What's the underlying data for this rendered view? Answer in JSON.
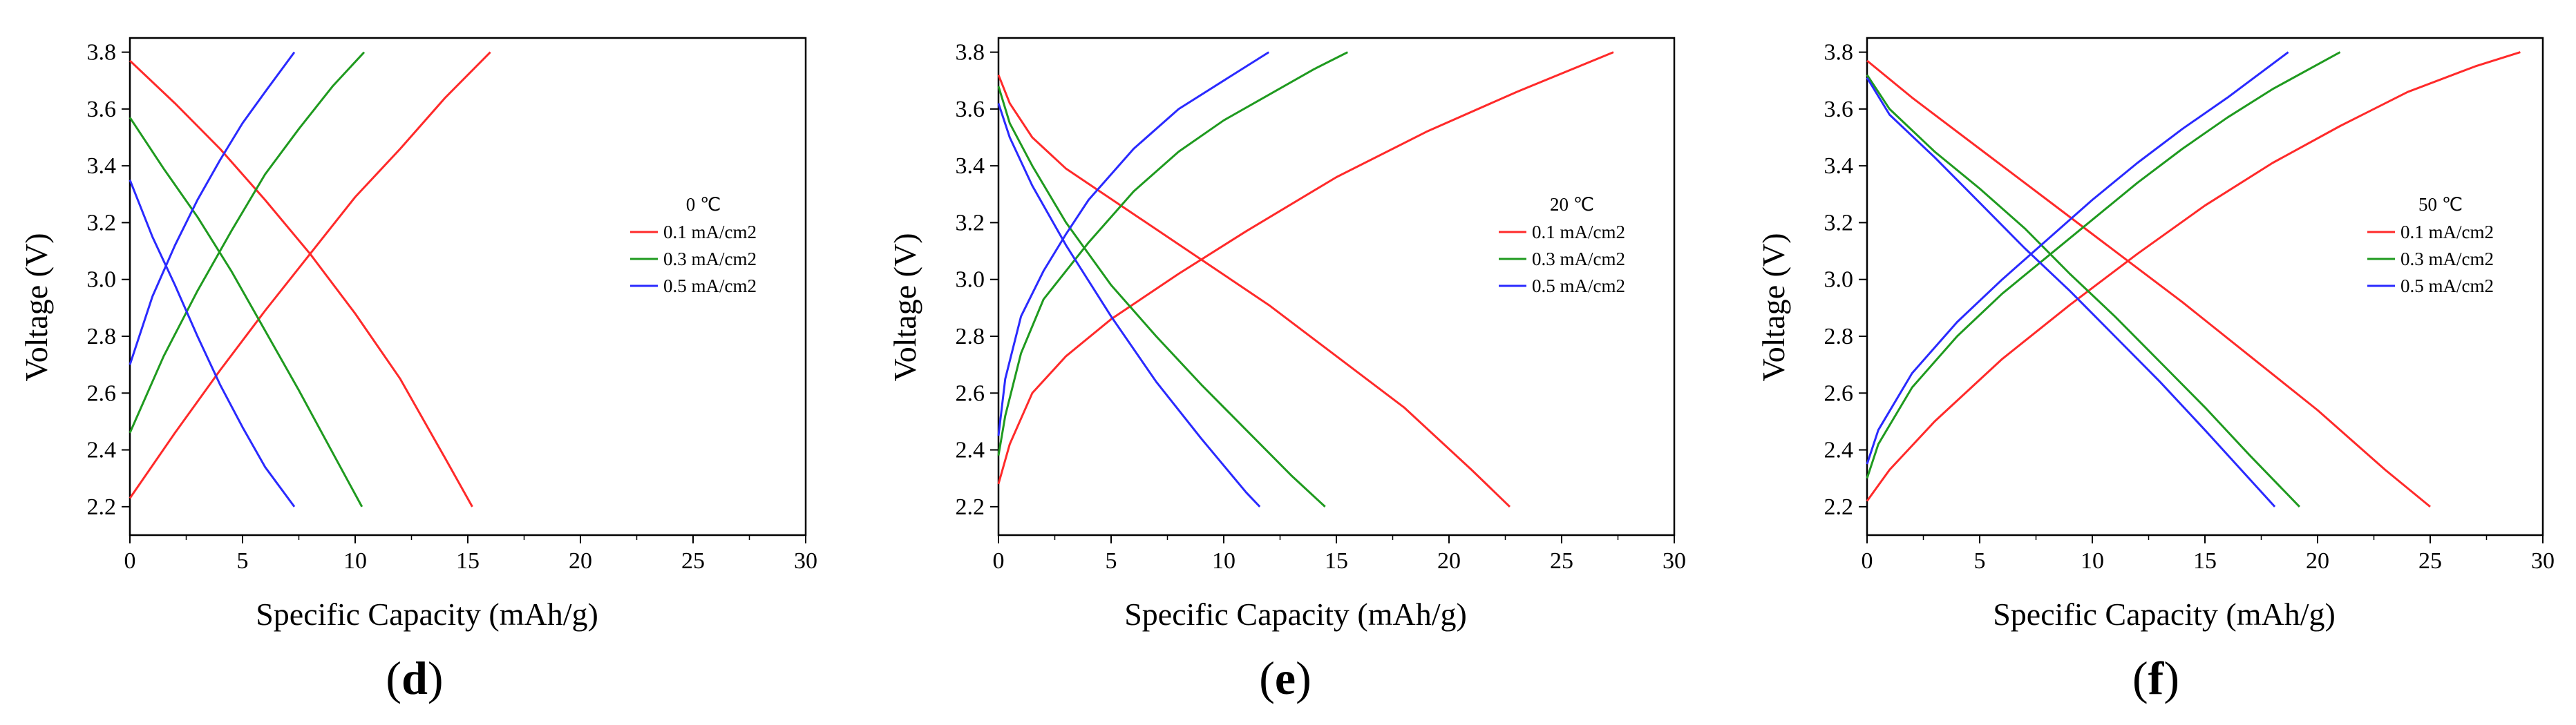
{
  "chart_data": [
    {
      "type": "line",
      "panel_label": {
        "open": "(",
        "letter": "d",
        "close": ")"
      },
      "legend_title": "0 ℃",
      "xlabel": "Specific Capacity (mAh/g)",
      "ylabel": "Voltage (V)",
      "xlim": [
        0,
        30
      ],
      "ylim": [
        2.1,
        3.85
      ],
      "xticks": [
        "0",
        "5",
        "10",
        "15",
        "20",
        "25",
        "30"
      ],
      "yticks": [
        "2.2",
        "2.4",
        "2.6",
        "2.8",
        "3.0",
        "3.2",
        "3.4",
        "3.6",
        "3.8"
      ],
      "legend_position": "center-right",
      "series": [
        {
          "name": "0.1 mA/cm2",
          "color": "#ff2a2a",
          "charge": {
            "x": [
              0,
              2,
              4,
              6,
              8,
              10,
              12,
              14,
              16
            ],
            "y": [
              2.23,
              2.46,
              2.68,
              2.89,
              3.09,
              3.29,
              3.46,
              3.64,
              3.8
            ]
          },
          "discharge": {
            "x": [
              0,
              2,
              4,
              6,
              8,
              10,
              12,
              14,
              15.2
            ],
            "y": [
              3.77,
              3.62,
              3.46,
              3.28,
              3.09,
              2.88,
              2.65,
              2.37,
              2.2
            ]
          }
        },
        {
          "name": "0.3 mA/cm2",
          "color": "#1f9a1f",
          "charge": {
            "x": [
              0,
              1.5,
              3,
              4.5,
              6,
              7.5,
              9,
              10.4
            ],
            "y": [
              2.46,
              2.73,
              2.96,
              3.17,
              3.37,
              3.53,
              3.68,
              3.8
            ]
          },
          "discharge": {
            "x": [
              0,
              1.5,
              3,
              4.5,
              6,
              7.5,
              9,
              10.3
            ],
            "y": [
              3.57,
              3.39,
              3.22,
              3.03,
              2.82,
              2.61,
              2.39,
              2.2
            ]
          }
        },
        {
          "name": "0.5 mA/cm2",
          "color": "#2a2aff",
          "charge": {
            "x": [
              0,
              1,
              2,
              3,
              4,
              5,
              6,
              7.3
            ],
            "y": [
              2.7,
              2.94,
              3.12,
              3.28,
              3.42,
              3.55,
              3.66,
              3.8
            ]
          },
          "discharge": {
            "x": [
              0,
              1,
              2,
              3,
              4,
              5,
              6,
              7.3
            ],
            "y": [
              3.35,
              3.15,
              2.98,
              2.8,
              2.63,
              2.48,
              2.34,
              2.2
            ]
          }
        }
      ]
    },
    {
      "type": "line",
      "panel_label": {
        "open": "(",
        "letter": "e",
        "close": ")"
      },
      "legend_title": "20 ℃",
      "xlabel": "Specific Capacity (mAh/g)",
      "ylabel": "Voltage (V)",
      "xlim": [
        0,
        30
      ],
      "ylim": [
        2.1,
        3.85
      ],
      "xticks": [
        "0",
        "5",
        "10",
        "15",
        "20",
        "25",
        "30"
      ],
      "yticks": [
        "2.2",
        "2.4",
        "2.6",
        "2.8",
        "3.0",
        "3.2",
        "3.4",
        "3.6",
        "3.8"
      ],
      "legend_position": "center-right",
      "series": [
        {
          "name": "0.1 mA/cm2",
          "color": "#ff2a2a",
          "charge": {
            "x": [
              0,
              0.5,
              1.5,
              3,
              5,
              8,
              11,
              15,
              19,
              23,
              27.3
            ],
            "y": [
              2.28,
              2.42,
              2.6,
              2.73,
              2.86,
              3.02,
              3.17,
              3.36,
              3.52,
              3.66,
              3.8
            ]
          },
          "discharge": {
            "x": [
              0,
              0.5,
              1.5,
              3,
              6,
              9,
              12,
              15,
              18,
              21,
              22.7
            ],
            "y": [
              3.72,
              3.62,
              3.5,
              3.39,
              3.23,
              3.07,
              2.91,
              2.73,
              2.55,
              2.33,
              2.2
            ]
          }
        },
        {
          "name": "0.3 mA/cm2",
          "color": "#1f9a1f",
          "charge": {
            "x": [
              0,
              0.3,
              1,
              2,
              4,
              6,
              8,
              10,
              12,
              14,
              15.5
            ],
            "y": [
              2.38,
              2.52,
              2.74,
              2.93,
              3.13,
              3.31,
              3.45,
              3.56,
              3.65,
              3.74,
              3.8
            ]
          },
          "discharge": {
            "x": [
              0,
              0.5,
              1.5,
              3,
              5,
              7,
              9,
              11,
              13,
              14.5
            ],
            "y": [
              3.68,
              3.55,
              3.4,
              3.2,
              2.98,
              2.8,
              2.63,
              2.47,
              2.31,
              2.2
            ]
          }
        },
        {
          "name": "0.5 mA/cm2",
          "color": "#2a2aff",
          "charge": {
            "x": [
              0,
              0.3,
              1,
              2,
              3,
              4,
              6,
              8,
              10,
              12
            ],
            "y": [
              2.45,
              2.65,
              2.87,
              3.03,
              3.16,
              3.28,
              3.46,
              3.6,
              3.7,
              3.8
            ]
          },
          "discharge": {
            "x": [
              0,
              0.5,
              1.5,
              3,
              5,
              7,
              9,
              11,
              11.6
            ],
            "y": [
              3.62,
              3.5,
              3.33,
              3.12,
              2.87,
              2.64,
              2.44,
              2.25,
              2.2
            ]
          }
        }
      ]
    },
    {
      "type": "line",
      "panel_label": {
        "open": "(",
        "letter": "f",
        "close": ")"
      },
      "legend_title": "50 ℃",
      "xlabel": "Specific Capacity (mAh/g)",
      "ylabel": "Voltage (V)",
      "xlim": [
        0,
        30
      ],
      "ylim": [
        2.1,
        3.85
      ],
      "xticks": [
        "0",
        "5",
        "10",
        "15",
        "20",
        "25",
        "30"
      ],
      "yticks": [
        "2.2",
        "2.4",
        "2.6",
        "2.8",
        "3.0",
        "3.2",
        "3.4",
        "3.6",
        "3.8"
      ],
      "legend_position": "center-right",
      "series": [
        {
          "name": "0.1 mA/cm2",
          "color": "#ff2a2a",
          "charge": {
            "x": [
              0,
              1,
              3,
              6,
              9,
              12,
              15,
              18,
              21,
              24,
              27,
              29
            ],
            "y": [
              2.22,
              2.33,
              2.5,
              2.72,
              2.91,
              3.09,
              3.26,
              3.41,
              3.54,
              3.66,
              3.75,
              3.8
            ]
          },
          "discharge": {
            "x": [
              0,
              2,
              5,
              8,
              11,
              14,
              17,
              20,
              23,
              25
            ],
            "y": [
              3.77,
              3.64,
              3.46,
              3.28,
              3.1,
              2.92,
              2.73,
              2.54,
              2.33,
              2.2
            ]
          }
        },
        {
          "name": "0.3 mA/cm2",
          "color": "#1f9a1f",
          "charge": {
            "x": [
              0,
              0.5,
              2,
              4,
              6,
              8,
              10,
              12,
              14,
              16,
              18,
              21
            ],
            "y": [
              2.3,
              2.42,
              2.62,
              2.8,
              2.95,
              3.08,
              3.21,
              3.34,
              3.46,
              3.57,
              3.67,
              3.8
            ]
          },
          "discharge": {
            "x": [
              0,
              1,
              3,
              5,
              7,
              9,
              11,
              13,
              15,
              17,
              19.2
            ],
            "y": [
              3.72,
              3.6,
              3.45,
              3.32,
              3.18,
              3.02,
              2.87,
              2.71,
              2.55,
              2.38,
              2.2
            ]
          }
        },
        {
          "name": "0.5 mA/cm2",
          "color": "#2a2aff",
          "charge": {
            "x": [
              0,
              0.5,
              2,
              4,
              6,
              8,
              10,
              12,
              14,
              16,
              18.7
            ],
            "y": [
              2.35,
              2.47,
              2.67,
              2.85,
              3.0,
              3.14,
              3.28,
              3.41,
              3.53,
              3.64,
              3.8
            ]
          },
          "discharge": {
            "x": [
              0,
              1,
              3,
              5,
              7,
              9,
              11,
              13,
              15,
              18.1
            ],
            "y": [
              3.71,
              3.58,
              3.43,
              3.27,
              3.11,
              2.96,
              2.8,
              2.64,
              2.47,
              2.2
            ]
          }
        }
      ]
    }
  ]
}
